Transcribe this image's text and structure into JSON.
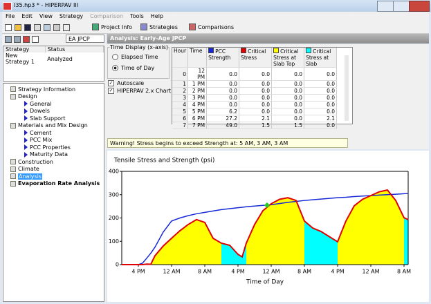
{
  "window": {
    "title": "I35.hp3 * - HIPERPAV III"
  },
  "menu": [
    {
      "label": "File",
      "enabled": true
    },
    {
      "label": "Edit",
      "enabled": true
    },
    {
      "label": "View",
      "enabled": true
    },
    {
      "label": "Strategy",
      "enabled": true
    },
    {
      "label": "Comparison",
      "enabled": false
    },
    {
      "label": "Tools",
      "enabled": true
    },
    {
      "label": "Help",
      "enabled": true
    }
  ],
  "tabs": [
    "Project Info",
    "Strategies",
    "Comparisons"
  ],
  "strategy_type": "EA JPCP",
  "header": "Analysis: Early-Age JPCP",
  "strategy_table": {
    "columns": [
      "Strategy",
      "Status"
    ],
    "rows": [
      [
        "New Strategy 1",
        "Analyzed"
      ]
    ]
  },
  "tree": [
    {
      "label": "Strategy Information",
      "level": 0,
      "selected": false,
      "bold": false
    },
    {
      "label": "Design",
      "level": 0,
      "selected": false,
      "bold": false
    },
    {
      "label": "General",
      "level": 1,
      "selected": false,
      "bold": false
    },
    {
      "label": "Dowels",
      "level": 1,
      "selected": false,
      "bold": false
    },
    {
      "label": "Slab Support",
      "level": 1,
      "selected": false,
      "bold": false
    },
    {
      "label": "Materials and Mix Design",
      "level": 0,
      "selected": false,
      "bold": false
    },
    {
      "label": "Cement",
      "level": 1,
      "selected": false,
      "bold": false
    },
    {
      "label": "PCC Mix",
      "level": 1,
      "selected": false,
      "bold": false
    },
    {
      "label": "PCC Properties",
      "level": 1,
      "selected": false,
      "bold": false
    },
    {
      "label": "Maturity Data",
      "level": 1,
      "selected": false,
      "bold": false
    },
    {
      "label": "Construction",
      "level": 0,
      "selected": false,
      "bold": false
    },
    {
      "label": "Climate",
      "level": 0,
      "selected": false,
      "bold": false
    },
    {
      "label": "Analysis",
      "level": 0,
      "selected": true,
      "bold": false
    },
    {
      "label": "Evaporation Rate Analysis",
      "level": 0,
      "selected": false,
      "bold": true
    }
  ],
  "time_display": {
    "title": "Time Display (x-axis)",
    "options": [
      "Elapsed Time",
      "Time of Day"
    ],
    "selected": 1
  },
  "checkboxes": [
    {
      "label": "Autoscale",
      "checked": true
    },
    {
      "label": "HIPERPAV 2.x Chart",
      "checked": true
    }
  ],
  "data_table": {
    "columns": [
      "Hour",
      "Time"
    ],
    "rows": [
      [
        "0",
        "12 PM",
        "0.0",
        "0.0",
        "0.0",
        "0.0"
      ],
      [
        "1",
        "1 PM",
        "0.0",
        "0.0",
        "0.0",
        "0.0"
      ],
      [
        "2",
        "2 PM",
        "0.0",
        "0.0",
        "0.0",
        "0.0"
      ],
      [
        "3",
        "3 PM",
        "0.0",
        "0.0",
        "0.0",
        "0.0"
      ],
      [
        "4",
        "4 PM",
        "0.0",
        "0.0",
        "0.0",
        "0.0"
      ],
      [
        "5",
        "5 PM",
        "6.2",
        "0.0",
        "0.0",
        "0.0"
      ],
      [
        "6",
        "6 PM",
        "27.2",
        "2.1",
        "0.0",
        "2.1"
      ],
      [
        "7",
        "7 PM",
        "49.0",
        "1.5",
        "1.5",
        "0.0"
      ]
    ]
  },
  "warning": "Warning! Stress begins to exceed Strength at: 5 AM, 3 AM, 3 AM",
  "chart_data": {
    "type": "line",
    "title": "Tensile Stress and Strength (psi)",
    "x_label": "Time of Day",
    "x": [
      0,
      2,
      4,
      5,
      6,
      7,
      8,
      10,
      12,
      14,
      16,
      18,
      20,
      22,
      24,
      26,
      28,
      29,
      30,
      32,
      34,
      36,
      38,
      40,
      42,
      44,
      46,
      48,
      50,
      52,
      54,
      56,
      58,
      60,
      62,
      64,
      66,
      68,
      69
    ],
    "xlim": [
      0,
      69
    ],
    "xticks": [
      {
        "value": 4,
        "label": "4 PM"
      },
      {
        "value": 12,
        "label": "12 AM"
      },
      {
        "value": 20,
        "label": "8 AM"
      },
      {
        "value": 28,
        "label": "4 PM"
      },
      {
        "value": 36,
        "label": "12 AM"
      },
      {
        "value": 44,
        "label": "8 AM"
      },
      {
        "value": 52,
        "label": "4 PM"
      },
      {
        "value": 60,
        "label": "12 AM"
      },
      {
        "value": 68,
        "label": "8 AM"
      }
    ],
    "ylim": [
      0,
      400
    ],
    "yticks": [
      0,
      100,
      200,
      300,
      400
    ],
    "series": [
      {
        "name": "PCC Strength",
        "color": "#1428d8",
        "style": "line",
        "values": [
          0,
          0,
          0,
          6.2,
          27.2,
          49,
          75,
          140,
          187,
          200,
          210,
          218,
          224,
          230,
          236,
          240,
          244,
          246,
          248,
          251,
          254,
          257,
          262,
          267,
          271,
          275,
          278,
          281,
          284,
          287,
          289,
          292,
          294,
          296,
          298,
          300,
          302,
          304,
          305
        ]
      },
      {
        "name": "Critical Stress",
        "color": "#e00000",
        "style": "line",
        "values": [
          0,
          0,
          0,
          0,
          2.1,
          1.5,
          38,
          80,
          113,
          145,
          172,
          193,
          181,
          113,
          92,
          83,
          44,
          33,
          92,
          172,
          231,
          261,
          280,
          287,
          275,
          187,
          157,
          142,
          120,
          98,
          187,
          252,
          280,
          296,
          312,
          320,
          275,
          201,
          193
        ]
      },
      {
        "name": "Critical Stress at Slab Top",
        "color": "#ffff00",
        "style": "area",
        "values": [
          0,
          0,
          0,
          0,
          0,
          1.5,
          38,
          80,
          113,
          145,
          172,
          193,
          181,
          113,
          92,
          null,
          null,
          null,
          92,
          172,
          231,
          261,
          280,
          287,
          275,
          187,
          null,
          null,
          null,
          98,
          187,
          252,
          280,
          296,
          312,
          320,
          275,
          201,
          null
        ]
      },
      {
        "name": "Critical Stress at Slab",
        "color": "#00ffff",
        "style": "area",
        "values": [
          null,
          null,
          null,
          null,
          null,
          null,
          null,
          null,
          null,
          null,
          null,
          null,
          null,
          null,
          92,
          83,
          44,
          33,
          92,
          null,
          null,
          null,
          null,
          null,
          null,
          187,
          157,
          142,
          120,
          98,
          null,
          null,
          null,
          null,
          null,
          null,
          null,
          201,
          193
        ]
      }
    ],
    "marker": {
      "x": 35,
      "y": 255,
      "color": "#22cc22"
    }
  }
}
